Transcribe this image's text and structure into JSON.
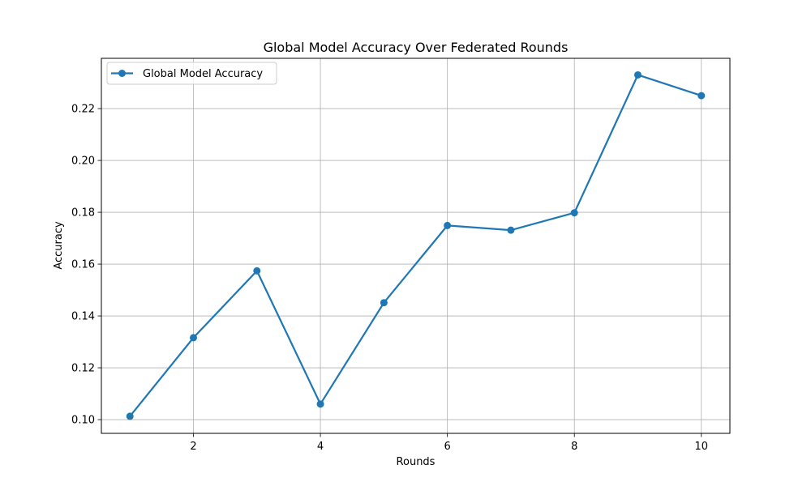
{
  "chart_data": {
    "type": "line",
    "title": "Global Model Accuracy Over Federated Rounds",
    "xlabel": "Rounds",
    "ylabel": "Accuracy",
    "xlim": [
      0.55,
      10.45
    ],
    "ylim": [
      0.0947,
      0.2394
    ],
    "x_ticks": [
      2,
      4,
      6,
      8,
      10
    ],
    "x_tick_labels": [
      "2",
      "4",
      "6",
      "8",
      "10"
    ],
    "y_ticks": [
      0.1,
      0.12,
      0.14,
      0.16,
      0.18,
      0.2,
      0.22
    ],
    "y_tick_labels": [
      "0.10",
      "0.12",
      "0.14",
      "0.16",
      "0.18",
      "0.20",
      "0.22"
    ],
    "grid": true,
    "legend_position": "upper-left",
    "series": [
      {
        "name": "Global Model Accuracy",
        "color": "#1f77b4",
        "marker": "circle",
        "x": [
          1,
          2,
          3,
          4,
          5,
          6,
          7,
          8,
          9,
          10
        ],
        "values": [
          0.1013,
          0.1316,
          0.1574,
          0.106,
          0.1451,
          0.1749,
          0.1731,
          0.1798,
          0.233,
          0.225
        ]
      }
    ]
  }
}
